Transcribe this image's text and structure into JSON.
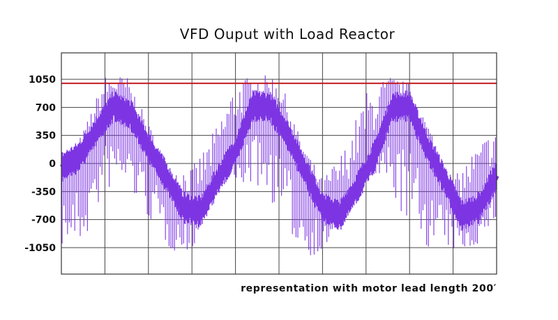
{
  "chart_data": {
    "type": "line",
    "title": "VFD Ouput with Load Reactor",
    "annotation": "representation with motor lead length 200′",
    "xlabel": "",
    "ylabel": "",
    "ylim": [
      -1380,
      1380
    ],
    "yticks": [
      {
        "value": 1050,
        "label": "1050"
      },
      {
        "value": 700,
        "label": "700"
      },
      {
        "value": 350,
        "label": "350"
      },
      {
        "value": 0,
        "label": "0"
      },
      {
        "value": -350,
        "label": "-350"
      },
      {
        "value": -700,
        "label": "-700"
      },
      {
        "value": -1050,
        "label": "-1050"
      }
    ],
    "x_gridlines": 9,
    "grid": true,
    "reference_line": {
      "value": 1000,
      "color": "#c0151b"
    },
    "series": [
      {
        "color": "#7d35e3",
        "fundamental": {
          "x": [
            0,
            0.04,
            0.08,
            0.12,
            0.16,
            0.2,
            0.24,
            0.28,
            0.32,
            0.36,
            0.4,
            0.44,
            0.48,
            0.52,
            0.56,
            0.6,
            0.64,
            0.68,
            0.72,
            0.76,
            0.8,
            0.84,
            0.88,
            0.92,
            0.96,
            1.0
          ],
          "y": [
            -50,
            80,
            400,
            720,
            600,
            200,
            -150,
            -550,
            -600,
            -200,
            150,
            720,
            700,
            350,
            -100,
            -550,
            -650,
            -300,
            100,
            700,
            720,
            200,
            -200,
            -650,
            -550,
            -150
          ]
        },
        "envelope_max": {
          "x": [
            0,
            0.05,
            0.1,
            0.15,
            0.2,
            0.25,
            0.3,
            0.35,
            0.4,
            0.45,
            0.5,
            0.55,
            0.6,
            0.65,
            0.7,
            0.75,
            0.8,
            0.85,
            0.9,
            0.95,
            1.0
          ],
          "y": [
            -100,
            400,
            1100,
            1100,
            500,
            -50,
            -50,
            400,
            1050,
            1100,
            1100,
            300,
            -200,
            200,
            900,
            1100,
            1000,
            400,
            -200,
            200,
            500
          ]
        },
        "envelope_min": {
          "x": [
            0,
            0.05,
            0.1,
            0.15,
            0.2,
            0.25,
            0.3,
            0.35,
            0.4,
            0.45,
            0.5,
            0.55,
            0.6,
            0.65,
            0.7,
            0.75,
            0.8,
            0.85,
            0.9,
            0.95,
            1.0
          ],
          "y": [
            -1050,
            -1050,
            -350,
            -300,
            -700,
            -1100,
            -1100,
            -300,
            -250,
            -300,
            -600,
            -1150,
            -1150,
            -600,
            -150,
            -300,
            -850,
            -1100,
            -1100,
            -1050,
            -700
          ]
        }
      }
    ],
    "colors": {
      "axis_frame": "#333333",
      "gridline": "#444444",
      "signal": "#7d35e3",
      "reference_line": "#c0151b"
    }
  }
}
